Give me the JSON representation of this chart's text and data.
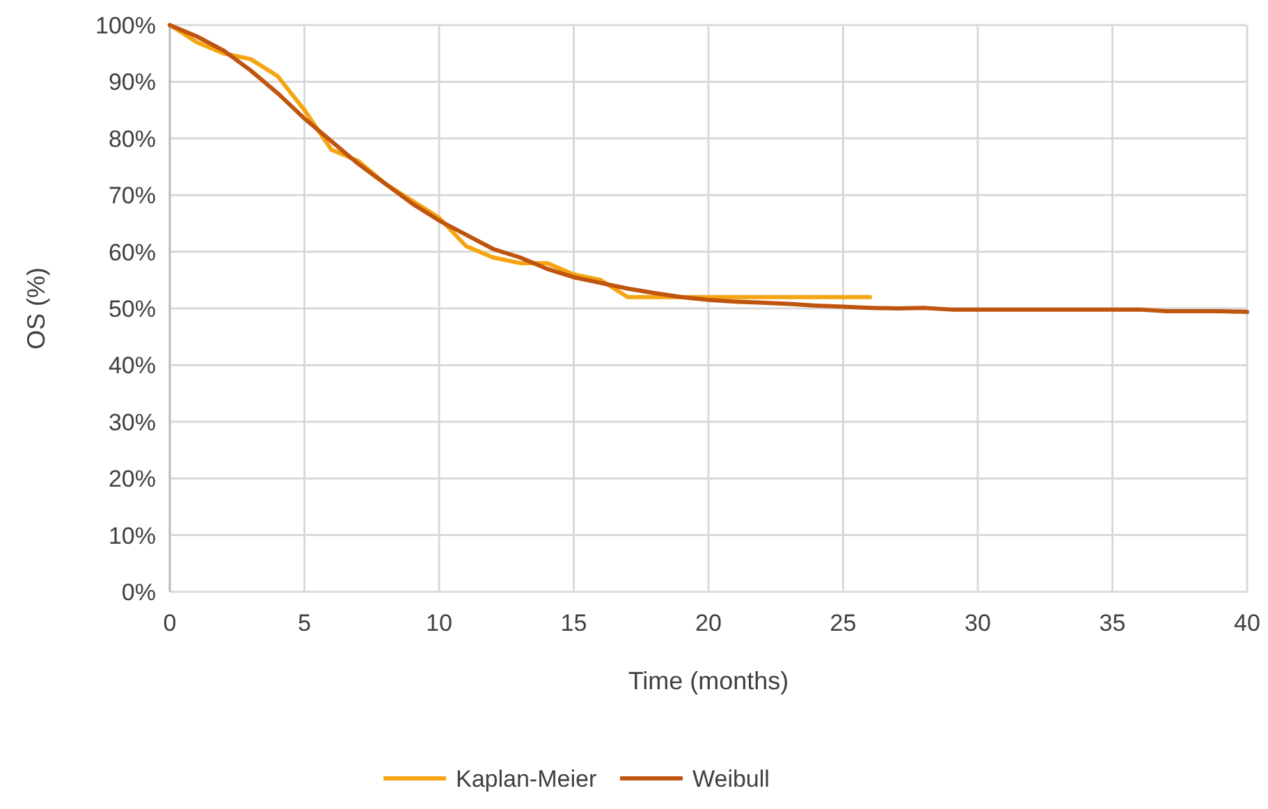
{
  "chart_data": {
    "type": "line",
    "xlabel": "Time (months)",
    "ylabel": "OS (%)",
    "xlim": [
      0,
      40
    ],
    "xticks": [
      0,
      5,
      10,
      15,
      20,
      25,
      30,
      35,
      40
    ],
    "ylim": [
      0,
      100
    ],
    "yticks": [
      {
        "value": 0,
        "label": "0%"
      },
      {
        "value": 10,
        "label": "10%"
      },
      {
        "value": 20,
        "label": "20%"
      },
      {
        "value": 30,
        "label": "30%"
      },
      {
        "value": 40,
        "label": "40%"
      },
      {
        "value": 50,
        "label": "50%"
      },
      {
        "value": 60,
        "label": "60%"
      },
      {
        "value": 70,
        "label": "70%"
      },
      {
        "value": 80,
        "label": "80%"
      },
      {
        "value": 90,
        "label": "90%"
      },
      {
        "value": 100,
        "label": "100%"
      }
    ],
    "grid": true,
    "legend": "bottom",
    "line_style": "solid",
    "series": [
      {
        "name": "Kaplan-Meier",
        "color": "#f5a511",
        "x": [
          0,
          1,
          2,
          3,
          4,
          5,
          6,
          7,
          8,
          9,
          10,
          11,
          12,
          13,
          14,
          15,
          16,
          17,
          18,
          19,
          20,
          21,
          22,
          23,
          24,
          25,
          26
        ],
        "values": [
          100,
          97,
          95,
          94,
          91,
          85,
          78,
          76,
          72,
          69,
          66,
          61,
          59,
          58,
          58,
          56,
          55,
          52,
          52,
          52,
          52,
          52,
          52,
          52,
          52,
          52,
          52
        ]
      },
      {
        "name": "Weibull",
        "color": "#c0550f",
        "x": [
          0,
          1,
          2,
          3,
          4,
          5,
          6,
          7,
          8,
          9,
          10,
          11,
          12,
          13,
          14,
          15,
          16,
          17,
          18,
          19,
          20,
          21,
          22,
          23,
          24,
          25,
          26,
          27,
          28,
          29,
          30,
          31,
          32,
          33,
          34,
          35,
          36,
          37,
          38,
          39,
          40
        ],
        "values": [
          100,
          98,
          95.5,
          92,
          88,
          83.5,
          79.5,
          75.5,
          72,
          68.5,
          65.5,
          63,
          60.5,
          59,
          57,
          55.5,
          54.5,
          53.5,
          52.7,
          52,
          51.5,
          51.2,
          51,
          50.8,
          50.5,
          50.3,
          50.1,
          50,
          50.1,
          49.8,
          49.8,
          49.8,
          49.8,
          49.8,
          49.8,
          49.8,
          49.8,
          49.5,
          49.5,
          49.5,
          49.4
        ]
      }
    ]
  }
}
